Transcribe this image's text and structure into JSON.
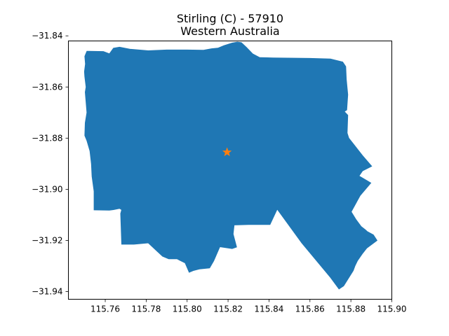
{
  "chart_data": {
    "type": "map",
    "title": "Stirling (C) - 57910",
    "subtitle": "Western Australia",
    "xlabel": "",
    "ylabel": "",
    "xlim": [
      115.742,
      115.9
    ],
    "ylim": [
      -31.943,
      -31.842
    ],
    "x_ticks": [
      115.76,
      115.78,
      115.8,
      115.82,
      115.84,
      115.86,
      115.88,
      115.9
    ],
    "x_tick_labels": [
      "115.76",
      "115.78",
      "115.80",
      "115.82",
      "115.84",
      "115.86",
      "115.88",
      "115.90"
    ],
    "y_ticks": [
      -31.84,
      -31.86,
      -31.88,
      -31.9,
      -31.92,
      -31.94
    ],
    "y_tick_labels": [
      "−31.84",
      "−31.86",
      "−31.88",
      "−31.90",
      "−31.92",
      "−31.94"
    ],
    "grid": false,
    "region": {
      "name": "Stirling (C)",
      "fill_color": "#1f77b4",
      "boundary": [
        [
          115.751,
          -31.846
        ],
        [
          115.7591,
          -31.8461
        ],
        [
          115.762,
          -31.847
        ],
        [
          115.764,
          -31.8448
        ],
        [
          115.767,
          -31.8444
        ],
        [
          115.772,
          -31.8452
        ],
        [
          115.781,
          -31.8458
        ],
        [
          115.79,
          -31.8455
        ],
        [
          115.8,
          -31.8455
        ],
        [
          115.808,
          -31.8456
        ],
        [
          115.812,
          -31.845
        ],
        [
          115.815,
          -31.8448
        ],
        [
          115.818,
          -31.8438
        ],
        [
          115.822,
          -31.8428
        ],
        [
          115.8245,
          -31.8424
        ],
        [
          115.8265,
          -31.8426
        ],
        [
          115.829,
          -31.8445
        ],
        [
          115.832,
          -31.847
        ],
        [
          115.8355,
          -31.8485
        ],
        [
          115.842,
          -31.8486
        ],
        [
          115.86,
          -31.8488
        ],
        [
          115.87,
          -31.849
        ],
        [
          115.876,
          -31.8502
        ],
        [
          115.8775,
          -31.852
        ],
        [
          115.8778,
          -31.857
        ],
        [
          115.8785,
          -31.863
        ],
        [
          115.878,
          -31.869
        ],
        [
          115.8768,
          -31.8696
        ],
        [
          115.8785,
          -31.871
        ],
        [
          115.8782,
          -31.878
        ],
        [
          115.879,
          -31.88
        ],
        [
          115.8812,
          -31.8822
        ],
        [
          115.8857,
          -31.8868
        ],
        [
          115.8902,
          -31.891
        ],
        [
          115.8857,
          -31.8928
        ],
        [
          115.884,
          -31.8948
        ],
        [
          115.8862,
          -31.8958
        ],
        [
          115.8898,
          -31.8975
        ],
        [
          115.8845,
          -31.9025
        ],
        [
          115.8802,
          -31.9088
        ],
        [
          115.8825,
          -31.9118
        ],
        [
          115.885,
          -31.9145
        ],
        [
          115.887,
          -31.9158
        ],
        [
          115.888,
          -31.9165
        ],
        [
          115.891,
          -31.9178
        ],
        [
          115.8928,
          -31.92
        ],
        [
          115.8878,
          -31.923
        ],
        [
          115.8858,
          -31.925
        ],
        [
          115.8832,
          -31.928
        ],
        [
          115.882,
          -31.93
        ],
        [
          115.8812,
          -31.9318
        ],
        [
          115.8785,
          -31.9352
        ],
        [
          115.8765,
          -31.9378
        ],
        [
          115.8742,
          -31.939
        ],
        [
          115.87,
          -31.9345
        ],
        [
          115.856,
          -31.921
        ],
        [
          115.844,
          -31.9078
        ],
        [
          115.8405,
          -31.9138
        ],
        [
          115.83,
          -31.9138
        ],
        [
          115.823,
          -31.914
        ],
        [
          115.8225,
          -31.9175
        ],
        [
          115.8242,
          -31.9226
        ],
        [
          115.822,
          -31.9232
        ],
        [
          115.816,
          -31.9225
        ],
        [
          115.813,
          -31.928
        ],
        [
          115.811,
          -31.9308
        ],
        [
          115.806,
          -31.9312
        ],
        [
          115.803,
          -31.9318
        ],
        [
          115.801,
          -31.9325
        ],
        [
          115.799,
          -31.9288
        ],
        [
          115.795,
          -31.9272
        ],
        [
          115.791,
          -31.9272
        ],
        [
          115.788,
          -31.9262
        ],
        [
          115.785,
          -31.924
        ],
        [
          115.781,
          -31.921
        ],
        [
          115.774,
          -31.9215
        ],
        [
          115.768,
          -31.9215
        ],
        [
          115.7675,
          -31.9095
        ],
        [
          115.768,
          -31.908
        ],
        [
          115.767,
          -31.9075
        ],
        [
          115.764,
          -31.908
        ],
        [
          115.762,
          -31.9082
        ],
        [
          115.7545,
          -31.9081
        ],
        [
          115.7545,
          -31.9008
        ],
        [
          115.7535,
          -31.895
        ],
        [
          115.7532,
          -31.89
        ],
        [
          115.7525,
          -31.885
        ],
        [
          115.751,
          -31.881
        ],
        [
          115.75,
          -31.879
        ],
        [
          115.7502,
          -31.874
        ],
        [
          115.751,
          -31.87
        ],
        [
          115.7505,
          -31.865
        ],
        [
          115.7502,
          -31.862
        ],
        [
          115.7506,
          -31.86
        ],
        [
          115.75,
          -31.856
        ],
        [
          115.7498,
          -31.854
        ],
        [
          115.7503,
          -31.851
        ],
        [
          115.75,
          -31.848
        ],
        [
          115.751,
          -31.846
        ]
      ]
    },
    "marker": {
      "shape": "star",
      "color": "#ff7f0e",
      "x": 115.8195,
      "y": -31.8855
    }
  }
}
